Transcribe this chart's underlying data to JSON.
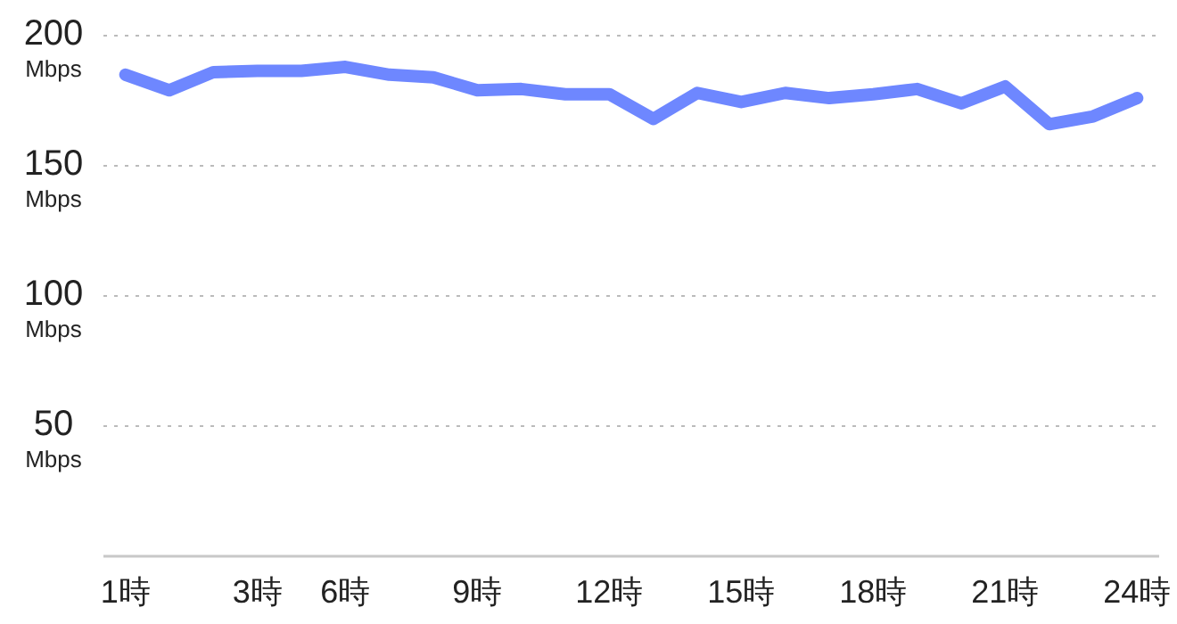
{
  "chart_data": {
    "type": "line",
    "categories": [
      "1時",
      null,
      null,
      "3時",
      null,
      "6時",
      null,
      null,
      "9時",
      null,
      null,
      "12時",
      null,
      null,
      "15時",
      null,
      null,
      "18時",
      null,
      null,
      "21時",
      null,
      null,
      "24時"
    ],
    "values": [
      185,
      179,
      186,
      186.5,
      186.5,
      188,
      185,
      184,
      179,
      179.5,
      177.5,
      177.5,
      168,
      178,
      174.5,
      178,
      176,
      177.5,
      179.5,
      174,
      180.5,
      166,
      169,
      176
    ],
    "color": "#6e87ff",
    "ylim": [
      0,
      200
    ],
    "yticks": [
      {
        "value": 0,
        "label": null
      },
      {
        "value": 50,
        "label": "50 Mbps"
      },
      {
        "value": 100,
        "label": "100 Mbps"
      },
      {
        "value": 150,
        "label": "150 Mbps"
      },
      {
        "value": 200,
        "label": "200 Mbps"
      }
    ],
    "grid": "y"
  }
}
